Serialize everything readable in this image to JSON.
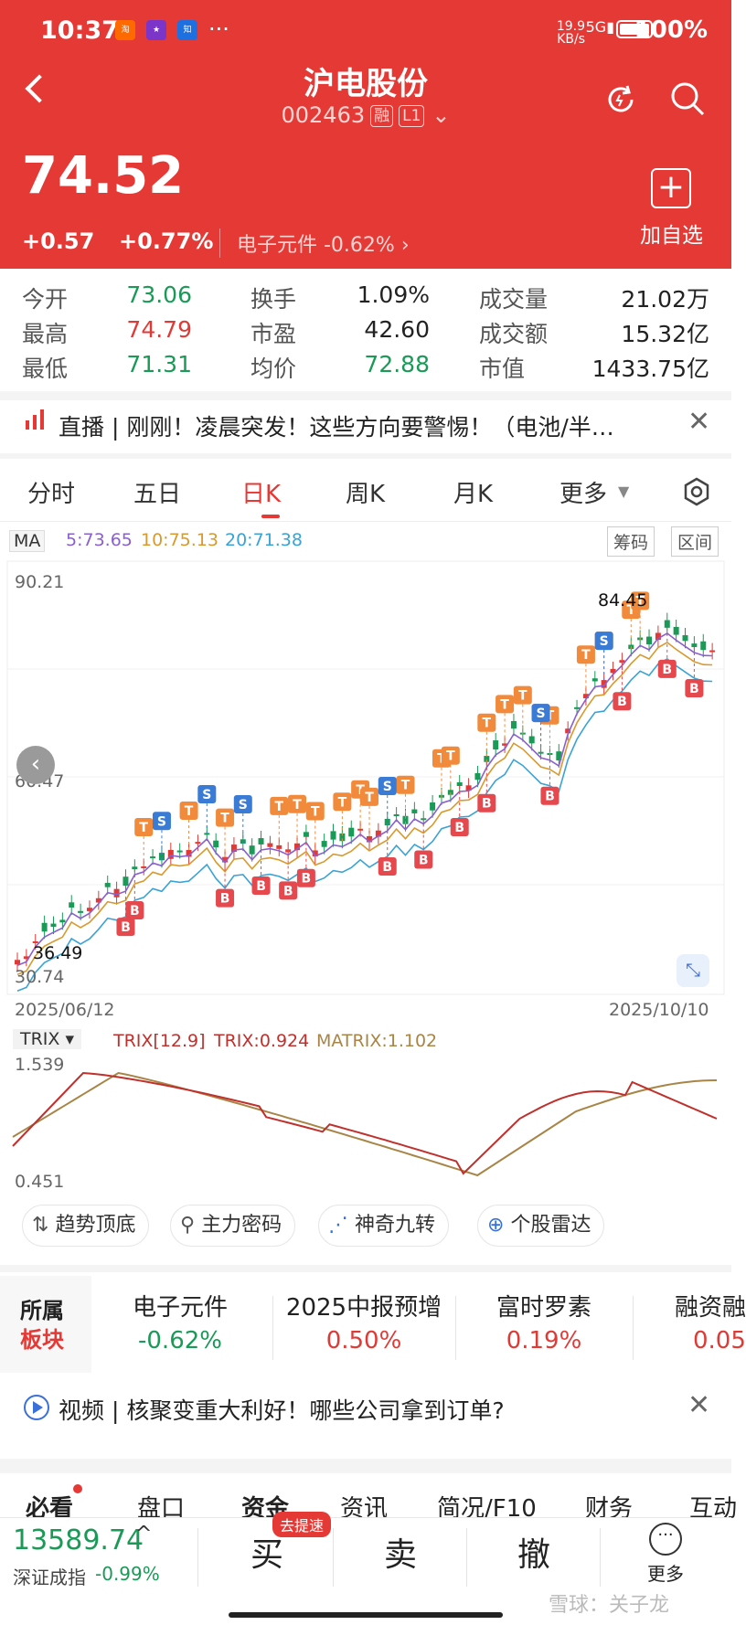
{
  "status_bar": {
    "time": "10:37",
    "right": "19.9 KB/s 5G 100%"
  },
  "header": {
    "title": "沪电股份",
    "code": "002463",
    "tag1": "融",
    "tag2": "L1",
    "price": "74.52",
    "change": "+0.57",
    "change_pct": "+0.77%",
    "sector": "电子元件 -0.62% ›",
    "add_label": "加自选"
  },
  "stats": [
    {
      "label": "今开",
      "value": "73.06",
      "color": "g"
    },
    {
      "label": "换手",
      "value": "1.09%",
      "color": ""
    },
    {
      "label": "成交量",
      "value": "21.02万",
      "color": ""
    },
    {
      "label": "最高",
      "value": "74.79",
      "color": "r"
    },
    {
      "label": "市盈",
      "value": "42.60",
      "color": ""
    },
    {
      "label": "成交额",
      "value": "15.32亿",
      "color": ""
    },
    {
      "label": "最低",
      "value": "71.31",
      "color": "g"
    },
    {
      "label": "均价",
      "value": "72.88",
      "color": "g"
    },
    {
      "label": "市值",
      "value": "1433.75亿",
      "color": ""
    }
  ],
  "news1": "直播 | 刚刚！凌晨突发！这些方向要警惕！（电池/半…",
  "tabs": [
    "分时",
    "五日",
    "日K",
    "周K",
    "月K",
    "更多"
  ],
  "ma": {
    "label": "MA",
    "ma5": "5:73.65",
    "ma10": "10:75.13",
    "ma20": "20:71.38",
    "btn1": "筹码",
    "btn2": "区间"
  },
  "kchart": {
    "ytop": "90.21",
    "ymid": "60.47",
    "ybot": "30.74",
    "high_label": "84.45",
    "low_label": "36.49",
    "date_start": "2025/06/12",
    "date_end": "2025/10/10"
  },
  "trix": {
    "label": "TRIX",
    "params": "TRIX[12.9]",
    "trix": "TRIX:0.924",
    "matrix": "MATRIX:1.102",
    "ytop": "1.539",
    "ybot": "0.451"
  },
  "tools": [
    "趋势顶底",
    "主力密码",
    "神奇九转",
    "个股雷达"
  ],
  "blocks": {
    "title1": "所属",
    "title2": "板块",
    "items": [
      {
        "name": "电子元件",
        "value": "-0.62%",
        "color": "g"
      },
      {
        "name": "2025中报预增",
        "value": "0.50%",
        "color": "r"
      },
      {
        "name": "富时罗素",
        "value": "0.19%",
        "color": "r"
      },
      {
        "name": "融资融",
        "value": "0.05",
        "color": "r"
      }
    ]
  },
  "news2": "视频 | 核聚变重大利好！哪些公司拿到订单?",
  "subtabs": [
    "必看",
    "盘口",
    "资金",
    "资讯",
    "简况/F10",
    "财务",
    "互动"
  ],
  "index": {
    "value": "13589.74",
    "name": "深证成指",
    "pct": "-0.99%"
  },
  "actions": {
    "buy": "买",
    "buy_badge": "去提速",
    "sell": "卖",
    "cancel": "撤",
    "more": "更多"
  },
  "watermark": "雪球：关子龙"
}
